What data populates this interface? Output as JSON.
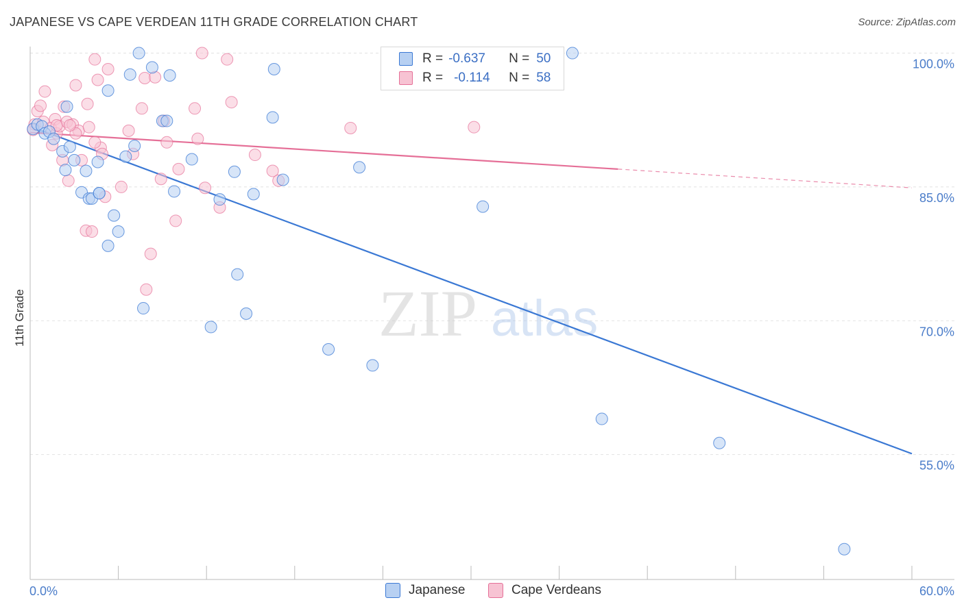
{
  "title": "JAPANESE VS CAPE VERDEAN 11TH GRADE CORRELATION CHART",
  "source": "Source: ZipAtlas.com",
  "watermark": {
    "zip": "ZIP",
    "atlas": "atlas"
  },
  "colors": {
    "blue": "#3a78d4",
    "blue_fill": "#b7d0f2",
    "pink": "#e56f97",
    "pink_fill": "#f7c3d3",
    "grid": "#e2e2e2",
    "axis_label": "#4a7cc9"
  },
  "legend": {
    "rows": [
      {
        "r_label": "R =",
        "r_value": "-0.637",
        "n_label": "N =",
        "n_value": "50"
      },
      {
        "r_label": "R =",
        "r_value": "-0.114",
        "n_label": "N =",
        "n_value": "58"
      }
    ]
  },
  "bottom_legend": {
    "japanese": "Japanese",
    "cape": "Cape Verdeans"
  },
  "chart_data": {
    "type": "scatter",
    "title": "JAPANESE VS CAPE VERDEAN 11TH GRADE CORRELATION CHART",
    "xlabel": "",
    "ylabel": "11th Grade",
    "xlim": [
      0,
      60
    ],
    "ylim": [
      41,
      102.5
    ],
    "x_tick_labels": [
      "0.0%",
      "60.0%"
    ],
    "y_ticks": [
      100,
      85,
      70,
      55
    ],
    "y_tick_labels": [
      "100.0%",
      "85.0%",
      "70.0%",
      "55.0%"
    ],
    "series": [
      {
        "name": "Japanese",
        "r": -0.637,
        "n": 50,
        "trend": {
          "x0": 0,
          "y0": 91.8,
          "x1": 60,
          "y1": 55.1
        },
        "points": [
          [
            0.2,
            91.5
          ],
          [
            0.5,
            92.0
          ],
          [
            0.8,
            91.8
          ],
          [
            1.0,
            91.0
          ],
          [
            1.3,
            91.2
          ],
          [
            1.6,
            90.4
          ],
          [
            2.2,
            89.0
          ],
          [
            2.7,
            89.5
          ],
          [
            2.5,
            94.0
          ],
          [
            3.0,
            88.0
          ],
          [
            2.4,
            86.9
          ],
          [
            3.8,
            86.8
          ],
          [
            3.5,
            84.4
          ],
          [
            4.0,
            83.7
          ],
          [
            4.2,
            83.7
          ],
          [
            4.7,
            84.3
          ],
          [
            4.6,
            87.8
          ],
          [
            5.3,
            95.8
          ],
          [
            5.7,
            81.8
          ],
          [
            6.0,
            80.0
          ],
          [
            5.3,
            78.4
          ],
          [
            6.5,
            88.4
          ],
          [
            6.8,
            97.6
          ],
          [
            7.1,
            89.6
          ],
          [
            7.4,
            100.0
          ],
          [
            7.7,
            71.4
          ],
          [
            8.3,
            98.4
          ],
          [
            9.0,
            92.4
          ],
          [
            9.3,
            92.4
          ],
          [
            9.5,
            97.5
          ],
          [
            9.8,
            84.5
          ],
          [
            11.0,
            88.1
          ],
          [
            12.3,
            69.3
          ],
          [
            12.9,
            83.6
          ],
          [
            13.9,
            86.7
          ],
          [
            14.1,
            75.2
          ],
          [
            14.7,
            70.8
          ],
          [
            15.2,
            84.2
          ],
          [
            16.5,
            92.8
          ],
          [
            16.6,
            98.2
          ],
          [
            17.2,
            85.8
          ],
          [
            20.3,
            66.8
          ],
          [
            22.4,
            87.2
          ],
          [
            23.3,
            65.0
          ],
          [
            30.8,
            82.8
          ],
          [
            36.9,
            100.0
          ],
          [
            38.9,
            59.0
          ],
          [
            46.9,
            56.3
          ],
          [
            55.4,
            44.4
          ],
          [
            4.7,
            84.3
          ]
        ]
      },
      {
        "name": "Cape Verdeans",
        "r": -0.114,
        "n": 58,
        "trend": {
          "x0": 0,
          "y0": 91.1,
          "x1": 40,
          "y1": 87.0
        },
        "trend_dashed": {
          "x0": 40,
          "y0": 87.0,
          "x1": 60,
          "y1": 84.9
        },
        "points": [
          [
            0.3,
            92.0
          ],
          [
            0.5,
            93.5
          ],
          [
            0.7,
            94.1
          ],
          [
            0.9,
            92.3
          ],
          [
            1.0,
            95.7
          ],
          [
            1.4,
            91.6
          ],
          [
            1.5,
            89.7
          ],
          [
            1.7,
            92.6
          ],
          [
            1.8,
            91.0
          ],
          [
            2.0,
            91.8
          ],
          [
            2.2,
            88.0
          ],
          [
            2.3,
            94.0
          ],
          [
            2.5,
            92.3
          ],
          [
            2.6,
            85.7
          ],
          [
            2.9,
            92.0
          ],
          [
            3.1,
            96.4
          ],
          [
            3.3,
            91.3
          ],
          [
            3.5,
            88.0
          ],
          [
            3.8,
            80.1
          ],
          [
            3.9,
            94.3
          ],
          [
            4.0,
            91.7
          ],
          [
            4.2,
            80.0
          ],
          [
            4.4,
            99.3
          ],
          [
            4.6,
            97.0
          ],
          [
            4.8,
            89.4
          ],
          [
            4.9,
            88.7
          ],
          [
            5.1,
            83.9
          ],
          [
            5.3,
            98.2
          ],
          [
            6.2,
            85.0
          ],
          [
            6.7,
            91.3
          ],
          [
            7.0,
            88.7
          ],
          [
            7.6,
            93.8
          ],
          [
            7.8,
            97.2
          ],
          [
            7.9,
            73.5
          ],
          [
            8.2,
            77.5
          ],
          [
            8.5,
            97.3
          ],
          [
            8.9,
            85.9
          ],
          [
            9.1,
            92.4
          ],
          [
            9.3,
            90.0
          ],
          [
            9.9,
            81.2
          ],
          [
            10.1,
            87.0
          ],
          [
            11.2,
            93.8
          ],
          [
            11.4,
            90.4
          ],
          [
            11.7,
            100.0
          ],
          [
            11.9,
            84.9
          ],
          [
            12.9,
            82.7
          ],
          [
            13.4,
            99.3
          ],
          [
            13.7,
            94.5
          ],
          [
            15.3,
            88.6
          ],
          [
            16.5,
            86.8
          ],
          [
            16.9,
            85.7
          ],
          [
            21.8,
            91.6
          ],
          [
            30.2,
            91.7
          ],
          [
            3.1,
            91.0
          ],
          [
            1.8,
            91.9
          ],
          [
            0.2,
            91.4
          ],
          [
            2.7,
            91.9
          ],
          [
            4.4,
            90.0
          ]
        ]
      }
    ]
  }
}
